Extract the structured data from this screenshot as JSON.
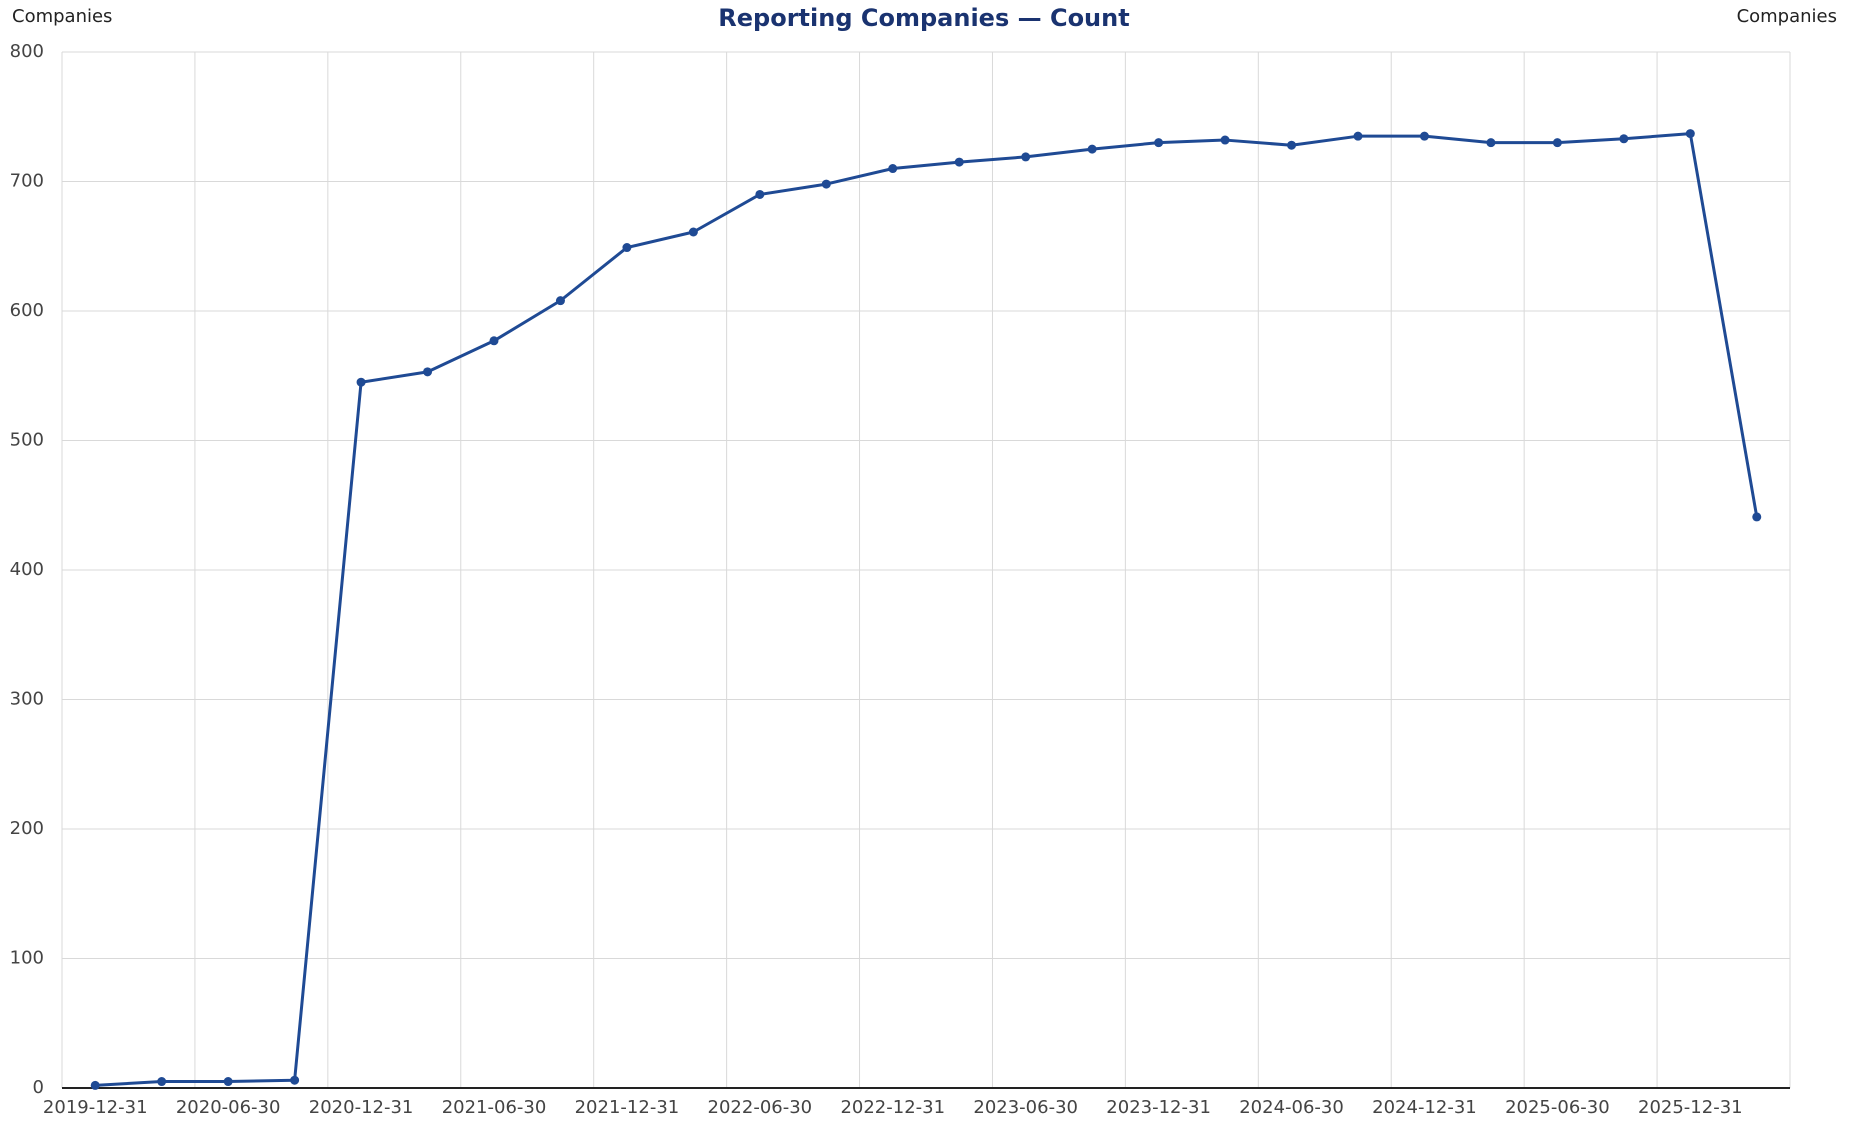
{
  "chart_data": {
    "type": "line",
    "title": "Reporting Companies — Count",
    "ylabel": "Companies",
    "ylabel_right": "Companies",
    "categories": [
      "2019-12-31",
      null,
      "2020-06-30",
      null,
      "2020-12-31",
      null,
      "2021-06-30",
      null,
      "2021-12-31",
      null,
      "2022-06-30",
      null,
      "2022-12-31",
      null,
      "2023-06-30",
      null,
      "2023-12-31",
      null,
      "2024-06-30",
      null,
      "2024-12-31",
      null,
      "2025-06-30",
      null,
      "2025-12-31",
      null
    ],
    "series": [
      {
        "name": "Count",
        "color": "#1f4a94",
        "values": [
          2,
          5,
          5,
          6,
          545,
          553,
          577,
          608,
          649,
          661,
          690,
          698,
          710,
          715,
          719,
          725,
          730,
          732,
          728,
          735,
          735,
          730,
          730,
          733,
          737,
          441
        ]
      }
    ],
    "ylim": [
      0,
      800
    ],
    "yticks": [
      0,
      100,
      200,
      300,
      400,
      500,
      600,
      700,
      800
    ],
    "grid": true
  }
}
